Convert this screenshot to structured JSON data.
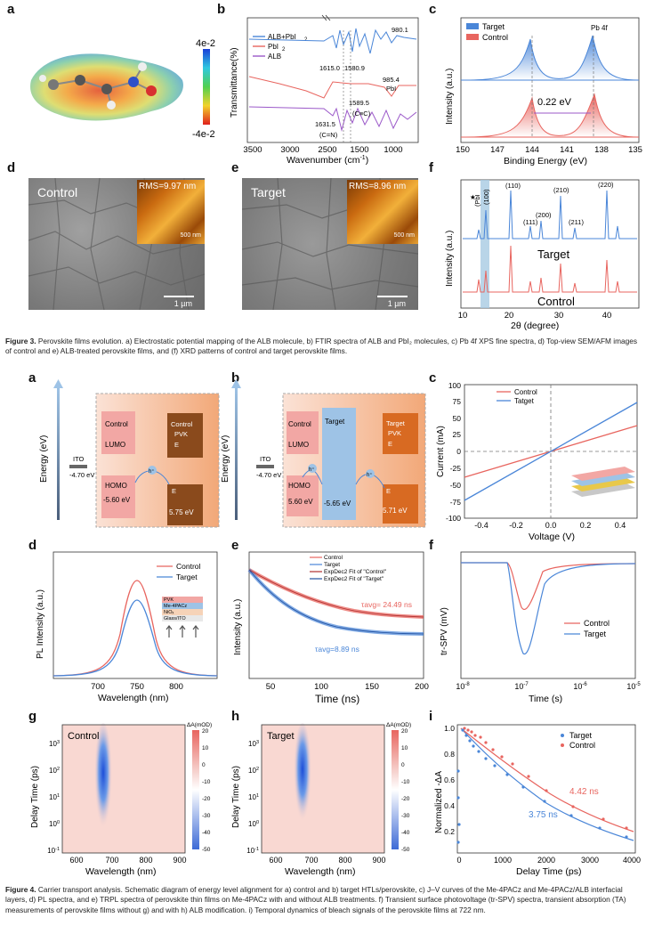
{
  "fig3": {
    "labels": [
      "a",
      "b",
      "c",
      "d",
      "e",
      "f"
    ],
    "a": {
      "scale_max": "4e-2",
      "scale_min": "-4e-2"
    },
    "b": {
      "xlabel": "Wavenumber (cm",
      "xlabel_sup": "-1",
      "xlabel_end": ")",
      "ylabel": "Transmittance(%)",
      "ticks": [
        "3500",
        "3000",
        "2500",
        "1500",
        "1000"
      ],
      "legend": [
        "ALB+PbI",
        "PbI",
        "ALB"
      ],
      "annots": [
        "980.1",
        "1615.0",
        "1580.9",
        "985.4",
        "PbI",
        "1589.5",
        "(C≡C)",
        "1631.5",
        "(C=N)"
      ]
    },
    "c": {
      "title": "Pb 4f",
      "xlabel": "Binding Energy (eV)",
      "ylabel": "Intensity (a.u.)",
      "ticks": [
        "150",
        "147",
        "144",
        "141",
        "138",
        "135"
      ],
      "legend": [
        "Target",
        "Control"
      ],
      "shift": "0.22 eV"
    },
    "d": {
      "label": "Control",
      "rms": "RMS=9.97 nm",
      "afm_scale": "500 nm",
      "scale": "1 µm"
    },
    "e": {
      "label": "Target",
      "rms": "RMS=8.96 nm",
      "afm_scale": "500 nm",
      "scale": "1 µm"
    },
    "f": {
      "xlabel": "2θ (degree)",
      "ylabel": "Intensity (a.u.)",
      "ticks": [
        "10",
        "20",
        "30",
        "40"
      ],
      "peaks": [
        "(PbI",
        "(100)",
        "(110)",
        "(111)",
        "(200)",
        "(210)",
        "(211)",
        "(220)"
      ],
      "target": "Target",
      "control": "Control",
      "star": "★"
    }
  },
  "caption3": {
    "lead": "Figure 3.",
    "text": " Perovskite films evolution. a) Electrostatic potential mapping of the ALB molecule, b) FTIR spectra of ALB and PbI₂ molecules, c) Pb 4f XPS fine spectra, d) Top-view SEM/AFM images of control and e) ALB-treated perovskite films, and (f) XRD patterns of control and target perovskite films."
  },
  "fig4": {
    "labels": [
      "a",
      "b",
      "c",
      "d",
      "e",
      "f",
      "g",
      "h",
      "i"
    ],
    "a": {
      "energy": "Energy (eV)",
      "ito": "ITO",
      "ito_v": "-4.70 eV",
      "control": "Control",
      "lumo": "LUMO",
      "homo": "HOMO",
      "homo_v": "-5.60 eV",
      "pvk": "Control",
      "pvk2": "PVK",
      "ef": "E",
      "ev": "E",
      "ev_v": "5.75 eV",
      "hole": "h⁺"
    },
    "b": {
      "energy": "Energy (eV)",
      "ito": "ITO",
      "ito_v": "-4.70 eV",
      "control": "Control",
      "target": "Target",
      "lumo": "LUMO",
      "homo": "HOMO",
      "homo_v": "5.60 eV",
      "homo2": "-5.65 eV",
      "pvk": "Target",
      "pvk2": "PVK",
      "ef": "E",
      "ev": "E",
      "ev_v": "5.71 eV",
      "hole": "h⁺"
    },
    "c": {
      "xlabel": "Voltage (V)",
      "ylabel": "Current (mA)",
      "xticks": [
        "-0.4",
        "-0.2",
        "0.0",
        "0.2",
        "0.4"
      ],
      "yticks": [
        "100",
        "75",
        "50",
        "25",
        "0",
        "-25",
        "-50",
        "-75",
        "-100"
      ],
      "legend": [
        "Control",
        "Tatget"
      ]
    },
    "d": {
      "xlabel": "Wavelength (nm)",
      "ylabel": "PL Intensity (a.u.)",
      "xticks": [
        "700",
        "750",
        "800"
      ],
      "legend": [
        "Control",
        "Target"
      ],
      "stack": [
        "PVK",
        "Me-4PACz",
        "NiOₓ",
        "Glass/ITO"
      ]
    },
    "e": {
      "xlabel": "Time (ns)",
      "ylabel": "Intensity (a.u.)",
      "xticks": [
        "50",
        "100",
        "150",
        "200"
      ],
      "legend": [
        "Control",
        "Target",
        "ExpDec2 Fit of \"Control\"",
        "ExpDec2 Fit of \"Target\""
      ],
      "tau1": "τavg= 24.49 ns",
      "tau2": "τavg=8.89 ns"
    },
    "f": {
      "xlabel": "Time (s)",
      "ylabel": "tr-SPV (mV)",
      "xticks": [
        "10",
        "10",
        "10",
        "10"
      ],
      "xsup": [
        "-8",
        "-7",
        "-6",
        "-5"
      ],
      "legend": [
        "Control",
        "Target"
      ]
    },
    "g": {
      "label": "Control",
      "xlabel": "Wavelength (nm)",
      "ylabel": "Delay Time (ps)",
      "cbar": "ΔA(mOD)",
      "xticks": [
        "600",
        "700",
        "800",
        "900"
      ],
      "ysup": [
        "3",
        "2",
        "1",
        "0",
        "-1"
      ],
      "cticks": [
        "20",
        "10",
        "0",
        "-10",
        "-20",
        "-30",
        "-40",
        "-50"
      ]
    },
    "h": {
      "label": "Target",
      "xlabel": "Wavelength (nm)",
      "ylabel": "Delay Time (ps)",
      "cbar": "ΔA(mOD)",
      "xticks": [
        "600",
        "700",
        "800",
        "900"
      ],
      "ysup": [
        "3",
        "2",
        "1",
        "0",
        "-1"
      ],
      "cticks": [
        "20",
        "10",
        "0",
        "-10",
        "-20",
        "-30",
        "-40",
        "-50"
      ]
    },
    "i": {
      "xlabel": "Delay Time (ps)",
      "ylabel": "Normalized -ΔA",
      "xticks": [
        "0",
        "1000",
        "2000",
        "3000",
        "4000"
      ],
      "yticks": [
        "1.0",
        "0.8",
        "0.6",
        "0.4",
        "0.2"
      ],
      "legend": [
        "Target",
        "Control"
      ],
      "t1": "4.42 ns",
      "t2": "3.75 ns"
    }
  },
  "caption4": {
    "lead": "Figure 4.",
    "text": " Carrier transport analysis. Schematic diagram of energy level alignment for a) control and b) target HTLs/perovskite, c) J–V curves of the Me-4PACz and Me-4PACz/ALB interfacial layers, d) PL spectra, and e) TRPL spectra of perovskite thin films on Me-4PACz with and without ALB treatments. f) Transient surface photovoltage (tr-SPV) spectra, transient absorption (TA) measurements of perovskite films without g) and with h) ALB modification. i) Temporal dynamics of bleach signals of the perovskite films at 722 nm."
  },
  "colors": {
    "red": "#e8655f",
    "blue": "#4a86d8",
    "purple": "#9b59c9"
  }
}
